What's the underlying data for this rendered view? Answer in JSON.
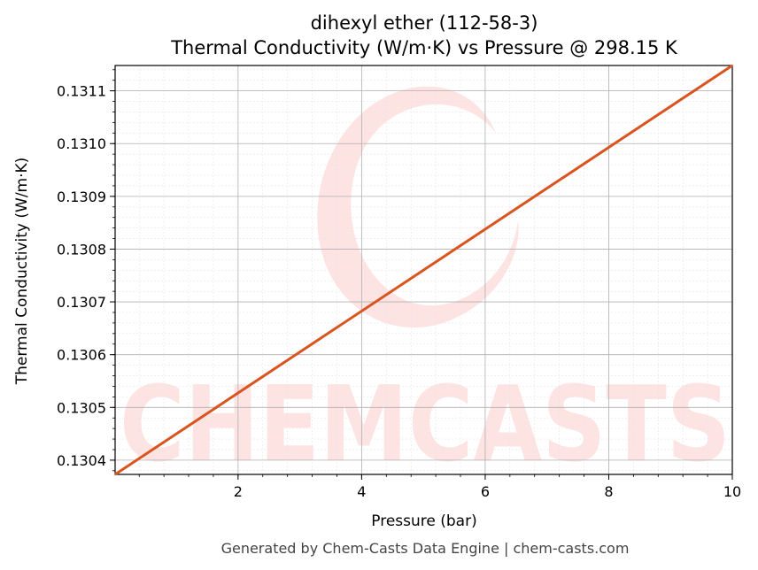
{
  "chart_data": {
    "type": "line",
    "title": "dihexyl ether (112-58-3)",
    "subtitle": "Thermal Conductivity (W/m·K) vs Pressure @ 298.15 K",
    "xlabel": "Pressure (bar)",
    "ylabel": "Thermal Conductivity (W/m·K)",
    "xlim": [
      0.01,
      10
    ],
    "ylim": [
      0.130373,
      0.131148
    ],
    "x_ticks": [
      2,
      4,
      6,
      8,
      10
    ],
    "x_tick_labels": [
      "2",
      "4",
      "6",
      "8",
      "10"
    ],
    "y_ticks": [
      0.1304,
      0.1305,
      0.1306,
      0.1307,
      0.1308,
      0.1309,
      0.131,
      0.1311
    ],
    "y_tick_labels": [
      "0.1304",
      "0.1305",
      "0.1306",
      "0.1307",
      "0.1308",
      "0.1309",
      "0.1310",
      "0.1311"
    ],
    "grid": true,
    "series": [
      {
        "x": [
          0.01,
          10
        ],
        "y": [
          0.130373,
          0.131148
        ],
        "color": "#d9541e"
      }
    ]
  },
  "watermark": {
    "text": "CHEMCASTS",
    "color": "#fde0df"
  },
  "footer": "Generated by Chem-Casts Data Engine | chem-casts.com"
}
